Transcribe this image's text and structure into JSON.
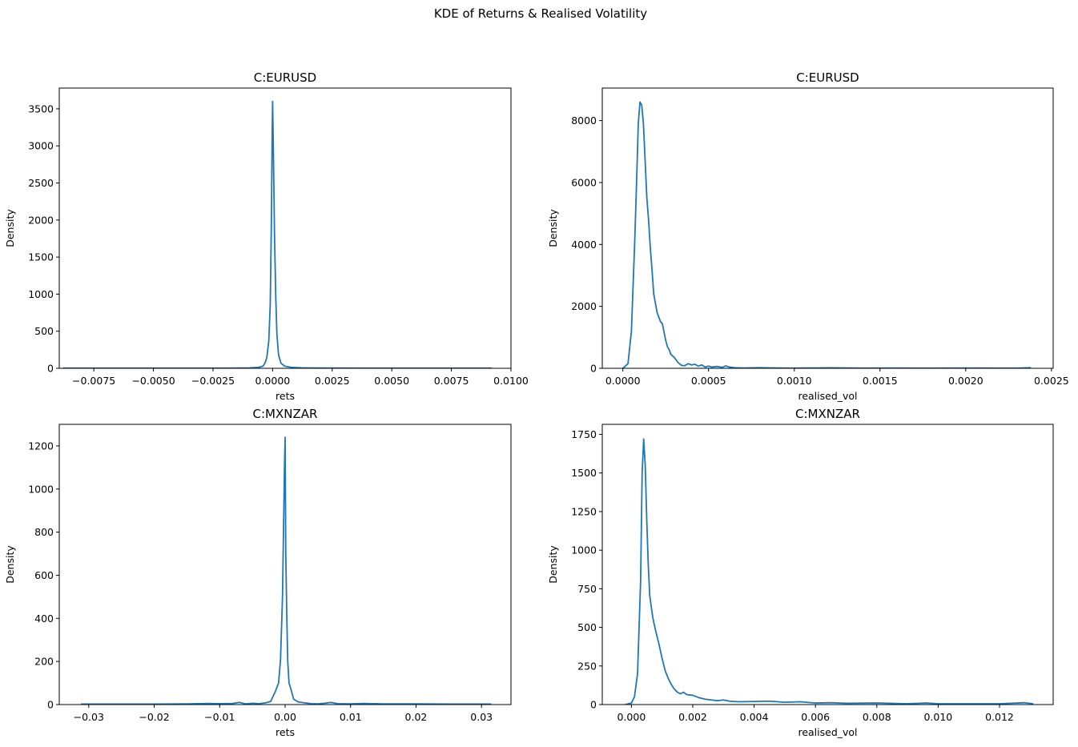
{
  "figure": {
    "suptitle": "KDE of Returns & Realised Volatility"
  },
  "chart_data": [
    {
      "type": "line",
      "title": "C:EURUSD",
      "xlabel": "rets",
      "ylabel": "Density",
      "xlim": [
        -0.00895,
        0.01
      ],
      "ylim": [
        0,
        3780
      ],
      "xticks": [
        -0.0075,
        -0.005,
        -0.0025,
        0.0,
        0.0025,
        0.005,
        0.0075,
        0.01
      ],
      "xtick_labels": [
        "−0.0075",
        "−0.0050",
        "−0.0025",
        "0.0000",
        "0.0025",
        "0.0050",
        "0.0075",
        "0.0100"
      ],
      "yticks": [
        0,
        500,
        1000,
        1500,
        2000,
        2500,
        3000,
        3500
      ],
      "ytick_labels": [
        "0",
        "500",
        "1000",
        "1500",
        "2000",
        "2500",
        "3000",
        "3500"
      ],
      "color": "#1f77b4",
      "series": [
        {
          "x": [
            -0.0088,
            -0.006,
            -0.004,
            -0.002,
            -0.001,
            -0.0006,
            -0.0004,
            -0.00032,
            -0.00024,
            -0.00016,
            -0.0001,
            -5e-05,
            -2e-05,
            0.0,
            3e-05,
            8e-05,
            0.00013,
            0.00018,
            0.00025,
            0.00035,
            0.0005,
            0.0008,
            0.0012,
            0.002,
            0.004,
            0.007,
            0.0092
          ],
          "y": [
            2,
            2,
            2,
            3,
            5,
            12,
            30,
            70,
            150,
            370,
            850,
            2000,
            3100,
            3600,
            3000,
            1800,
            1000,
            460,
            180,
            70,
            30,
            12,
            6,
            4,
            3,
            2,
            2
          ]
        }
      ]
    },
    {
      "type": "line",
      "title": "C:EURUSD",
      "xlabel": "realised_vol",
      "ylabel": "Density",
      "xlim": [
        -0.00012,
        0.00251
      ],
      "ylim": [
        0,
        9050
      ],
      "xticks": [
        0.0,
        0.0005,
        0.001,
        0.0015,
        0.002,
        0.0025
      ],
      "xtick_labels": [
        "0.0000",
        "0.0005",
        "0.0010",
        "0.0015",
        "0.0020",
        "0.0025"
      ],
      "yticks": [
        0,
        2000,
        4000,
        6000,
        8000
      ],
      "ytick_labels": [
        "0",
        "2000",
        "4000",
        "6000",
        "8000"
      ],
      "color": "#1f77b4",
      "series": [
        {
          "x": [
            0.0,
            3e-05,
            5e-05,
            7e-05,
            8e-05,
            9e-05,
            0.0001,
            0.00011,
            0.00012,
            0.00013,
            0.00014,
            0.00015,
            0.00016,
            0.00017,
            0.00018,
            0.0002,
            0.00021,
            0.00022,
            0.00023,
            0.00025,
            0.00026,
            0.00027,
            0.00028,
            0.0003,
            0.00032,
            0.00034,
            0.00036,
            0.00038,
            0.0004,
            0.00042,
            0.00044,
            0.00046,
            0.00048,
            0.0005,
            0.00052,
            0.00055,
            0.00058,
            0.0006,
            0.00062,
            0.00065,
            0.0007,
            0.0008,
            0.0009,
            0.001,
            0.0012,
            0.0014,
            0.0016,
            0.0018,
            0.002,
            0.0022,
            0.0023,
            0.00238
          ],
          "y": [
            0,
            150,
            1200,
            4200,
            6000,
            7900,
            8600,
            8500,
            7900,
            6700,
            5500,
            4800,
            3900,
            3200,
            2400,
            1800,
            1650,
            1500,
            1450,
            900,
            700,
            600,
            450,
            350,
            200,
            100,
            80,
            150,
            110,
            130,
            70,
            110,
            40,
            70,
            40,
            60,
            30,
            80,
            40,
            20,
            10,
            20,
            10,
            5,
            15,
            5,
            10,
            5,
            10,
            5,
            5,
            20
          ]
        }
      ]
    },
    {
      "type": "line",
      "title": "C:MXNZAR",
      "xlabel": "rets",
      "ylabel": "Density",
      "xlim": [
        -0.0345,
        0.0345
      ],
      "ylim": [
        0,
        1300
      ],
      "xticks": [
        -0.03,
        -0.02,
        -0.01,
        0.0,
        0.01,
        0.02,
        0.03
      ],
      "xtick_labels": [
        "−0.03",
        "−0.02",
        "−0.01",
        "0.00",
        "0.01",
        "0.02",
        "0.03"
      ],
      "yticks": [
        0,
        200,
        400,
        600,
        800,
        1000,
        1200
      ],
      "ytick_labels": [
        "0",
        "200",
        "400",
        "600",
        "800",
        "1000",
        "1200"
      ],
      "color": "#1f77b4",
      "series": [
        {
          "x": [
            -0.0312,
            -0.025,
            -0.02,
            -0.015,
            -0.012,
            -0.01,
            -0.008,
            -0.007,
            -0.006,
            -0.005,
            -0.004,
            -0.003,
            -0.0022,
            -0.0015,
            -0.001,
            -0.0007,
            -0.0004,
            -0.0002,
            -0.0001,
            0.0,
            0.0001,
            0.00025,
            0.0004,
            0.0006,
            0.0009,
            0.0013,
            0.002,
            0.003,
            0.004,
            0.005,
            0.006,
            0.007,
            0.008,
            0.01,
            0.012,
            0.015,
            0.02,
            0.025,
            0.0315
          ],
          "y": [
            2,
            2,
            2,
            3,
            5,
            4,
            5,
            10,
            3,
            6,
            4,
            8,
            15,
            60,
            100,
            210,
            500,
            900,
            1100,
            1240,
            700,
            420,
            200,
            100,
            70,
            25,
            12,
            8,
            4,
            3,
            6,
            10,
            4,
            3,
            5,
            3,
            3,
            2,
            2
          ]
        }
      ]
    },
    {
      "type": "line",
      "title": "C:MXNZAR",
      "xlabel": "realised_vol",
      "ylabel": "Density",
      "xlim": [
        -0.00095,
        0.01375
      ],
      "ylim": [
        0,
        1815
      ],
      "xticks": [
        0.0,
        0.002,
        0.004,
        0.006,
        0.008,
        0.01,
        0.012
      ],
      "xtick_labels": [
        "0.000",
        "0.002",
        "0.004",
        "0.006",
        "0.008",
        "0.010",
        "0.012"
      ],
      "yticks": [
        0,
        250,
        500,
        750,
        1000,
        1250,
        1500,
        1750
      ],
      "ytick_labels": [
        "0",
        "250",
        "500",
        "750",
        "1000",
        "1250",
        "1500",
        "1750"
      ],
      "color": "#1f77b4",
      "series": [
        {
          "x": [
            -0.0002,
            0.0,
            0.0001,
            0.0002,
            0.0003,
            0.00035,
            0.0004,
            0.00045,
            0.0005,
            0.00055,
            0.0006,
            0.0007,
            0.0008,
            0.0009,
            0.001,
            0.0011,
            0.0012,
            0.0013,
            0.0014,
            0.0015,
            0.0016,
            0.0017,
            0.0018,
            0.002,
            0.0022,
            0.0024,
            0.0026,
            0.0028,
            0.003,
            0.0032,
            0.0035,
            0.004,
            0.0045,
            0.005,
            0.0055,
            0.006,
            0.0065,
            0.007,
            0.008,
            0.009,
            0.0096,
            0.01,
            0.011,
            0.012,
            0.0128,
            0.0131
          ],
          "y": [
            0,
            10,
            50,
            200,
            800,
            1500,
            1720,
            1550,
            1200,
            900,
            700,
            560,
            470,
            390,
            300,
            220,
            170,
            130,
            100,
            80,
            70,
            80,
            65,
            60,
            45,
            35,
            30,
            25,
            30,
            22,
            18,
            20,
            22,
            15,
            18,
            10,
            12,
            8,
            10,
            5,
            10,
            5,
            5,
            5,
            12,
            5
          ]
        }
      ]
    }
  ]
}
